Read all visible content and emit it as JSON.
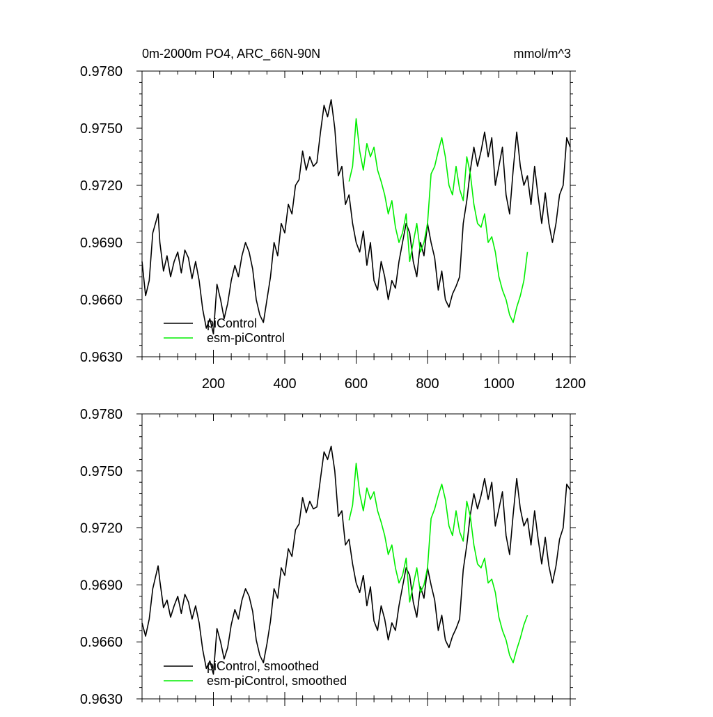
{
  "chart_data": [
    {
      "type": "line",
      "title": "0m-2000m PO4, ARC_66N-90N",
      "units": "mmol/m^3",
      "xlim": [
        0,
        1200
      ],
      "ylim": [
        0.963,
        0.978
      ],
      "yticks": [
        "0.9630",
        "0.9660",
        "0.9690",
        "0.9720",
        "0.9750",
        "0.9780"
      ],
      "xticks": [
        "200",
        "400",
        "600",
        "800",
        "1000",
        "1200"
      ],
      "legend_position": "bottom-left",
      "series": [
        {
          "name": "piControl",
          "color": "#000000",
          "x": [
            0,
            10,
            20,
            30,
            45,
            50,
            60,
            70,
            80,
            90,
            100,
            110,
            120,
            130,
            140,
            150,
            160,
            170,
            180,
            190,
            200,
            210,
            220,
            230,
            240,
            250,
            260,
            270,
            280,
            290,
            300,
            310,
            320,
            330,
            340,
            350,
            360,
            370,
            380,
            390,
            400,
            410,
            420,
            430,
            440,
            450,
            460,
            470,
            480,
            490,
            500,
            510,
            520,
            530,
            540,
            550,
            560,
            570,
            580,
            590,
            600,
            610,
            620,
            630,
            640,
            650,
            660,
            670,
            680,
            690,
            700,
            710,
            720,
            730,
            740,
            750,
            760,
            770,
            780,
            790,
            800,
            810,
            820,
            830,
            840,
            850,
            860,
            870,
            880,
            890,
            900,
            910,
            920,
            930,
            940,
            950,
            960,
            970,
            980,
            990,
            1000,
            1010,
            1020,
            1030,
            1040,
            1050,
            1060,
            1070,
            1080,
            1090,
            1100,
            1110,
            1120,
            1130,
            1140,
            1150,
            1160,
            1170,
            1180,
            1190,
            1200
          ],
          "y": [
            0.968,
            0.9662,
            0.967,
            0.9695,
            0.9705,
            0.969,
            0.9675,
            0.9683,
            0.9672,
            0.968,
            0.9685,
            0.9674,
            0.9686,
            0.9682,
            0.9671,
            0.968,
            0.967,
            0.9655,
            0.9645,
            0.965,
            0.9642,
            0.9668,
            0.966,
            0.965,
            0.9658,
            0.967,
            0.9678,
            0.9672,
            0.9683,
            0.969,
            0.9685,
            0.9676,
            0.966,
            0.9652,
            0.9648,
            0.966,
            0.9672,
            0.969,
            0.9683,
            0.97,
            0.9695,
            0.971,
            0.9705,
            0.972,
            0.9723,
            0.9738,
            0.9728,
            0.9735,
            0.973,
            0.9732,
            0.9748,
            0.9762,
            0.9756,
            0.9765,
            0.975,
            0.9725,
            0.973,
            0.971,
            0.9715,
            0.97,
            0.969,
            0.9685,
            0.9696,
            0.9678,
            0.969,
            0.967,
            0.9665,
            0.968,
            0.9672,
            0.966,
            0.967,
            0.9666,
            0.968,
            0.969,
            0.97,
            0.9695,
            0.968,
            0.9672,
            0.969,
            0.9683,
            0.97,
            0.969,
            0.9682,
            0.9665,
            0.9675,
            0.966,
            0.9656,
            0.9663,
            0.9667,
            0.9672,
            0.97,
            0.9712,
            0.9728,
            0.974,
            0.973,
            0.9738,
            0.9748,
            0.9735,
            0.9745,
            0.972,
            0.973,
            0.974,
            0.9715,
            0.9705,
            0.9728,
            0.9748,
            0.973,
            0.972,
            0.9725,
            0.971,
            0.973,
            0.9714,
            0.97,
            0.9716,
            0.97,
            0.969,
            0.97,
            0.9715,
            0.972,
            0.9745,
            0.974
          ],
          "legend": "piControl"
        },
        {
          "name": "esm-piControl",
          "color": "#00ee00",
          "x": [
            580,
            590,
            600,
            610,
            620,
            630,
            640,
            650,
            660,
            670,
            680,
            690,
            700,
            710,
            720,
            730,
            740,
            750,
            760,
            770,
            780,
            790,
            800,
            810,
            820,
            830,
            840,
            850,
            860,
            870,
            880,
            890,
            900,
            910,
            920,
            930,
            940,
            950,
            960,
            970,
            980,
            990,
            1000,
            1010,
            1020,
            1030,
            1040,
            1050,
            1060,
            1070,
            1080
          ],
          "y": [
            0.9722,
            0.973,
            0.9755,
            0.9738,
            0.9728,
            0.9742,
            0.9735,
            0.974,
            0.9728,
            0.9722,
            0.9715,
            0.9705,
            0.9712,
            0.9698,
            0.969,
            0.9695,
            0.9705,
            0.968,
            0.969,
            0.97,
            0.9685,
            0.969,
            0.97,
            0.9726,
            0.973,
            0.9738,
            0.9745,
            0.9735,
            0.972,
            0.9715,
            0.973,
            0.9718,
            0.9712,
            0.9735,
            0.9726,
            0.971,
            0.97,
            0.9698,
            0.9705,
            0.969,
            0.9693,
            0.9685,
            0.9672,
            0.9665,
            0.966,
            0.9652,
            0.9648,
            0.9656,
            0.9662,
            0.967,
            0.9685
          ],
          "legend": "esm-piControl"
        }
      ]
    },
    {
      "type": "line",
      "title": "",
      "xlim": [
        0,
        1200
      ],
      "ylim": [
        0.963,
        0.978
      ],
      "yticks": [
        "0.9630",
        "0.9660",
        "0.9690",
        "0.9720",
        "0.9750",
        "0.9780"
      ],
      "legend_position": "bottom-left",
      "series": [
        {
          "name": "piControl, smoothed",
          "color": "#000000",
          "x": [
            0,
            10,
            20,
            30,
            45,
            50,
            60,
            70,
            80,
            90,
            100,
            110,
            120,
            130,
            140,
            150,
            160,
            170,
            180,
            190,
            200,
            210,
            220,
            230,
            240,
            250,
            260,
            270,
            280,
            290,
            300,
            310,
            320,
            330,
            340,
            350,
            360,
            370,
            380,
            390,
            400,
            410,
            420,
            430,
            440,
            450,
            460,
            470,
            480,
            490,
            500,
            510,
            520,
            530,
            540,
            550,
            560,
            570,
            580,
            590,
            600,
            610,
            620,
            630,
            640,
            650,
            660,
            670,
            680,
            690,
            700,
            710,
            720,
            730,
            740,
            750,
            760,
            770,
            780,
            790,
            800,
            810,
            820,
            830,
            840,
            850,
            860,
            870,
            880,
            890,
            900,
            910,
            920,
            930,
            940,
            950,
            960,
            970,
            980,
            990,
            1000,
            1010,
            1020,
            1030,
            1040,
            1050,
            1060,
            1070,
            1080,
            1090,
            1100,
            1110,
            1120,
            1130,
            1140,
            1150,
            1160,
            1170,
            1180,
            1190,
            1200
          ],
          "y": [
            0.967,
            0.9663,
            0.9672,
            0.9688,
            0.97,
            0.9692,
            0.9678,
            0.9682,
            0.9673,
            0.9679,
            0.9684,
            0.9675,
            0.9685,
            0.9681,
            0.9672,
            0.9679,
            0.967,
            0.9656,
            0.9646,
            0.965,
            0.9643,
            0.9667,
            0.966,
            0.9651,
            0.9657,
            0.9669,
            0.9677,
            0.9672,
            0.9682,
            0.9688,
            0.9684,
            0.9676,
            0.9661,
            0.9653,
            0.9649,
            0.9659,
            0.9671,
            0.9688,
            0.9683,
            0.9699,
            0.9695,
            0.9709,
            0.9705,
            0.9719,
            0.9722,
            0.9736,
            0.9728,
            0.9734,
            0.973,
            0.9731,
            0.9746,
            0.976,
            0.9756,
            0.9763,
            0.975,
            0.9726,
            0.9729,
            0.9711,
            0.9714,
            0.9701,
            0.9691,
            0.9686,
            0.9695,
            0.9679,
            0.9689,
            0.9671,
            0.9666,
            0.9679,
            0.9672,
            0.9661,
            0.967,
            0.9666,
            0.9679,
            0.9689,
            0.9699,
            0.9695,
            0.9681,
            0.9673,
            0.9689,
            0.9683,
            0.9699,
            0.969,
            0.9682,
            0.9666,
            0.9674,
            0.9661,
            0.9657,
            0.9663,
            0.9667,
            0.9672,
            0.9698,
            0.9711,
            0.9727,
            0.9738,
            0.973,
            0.9737,
            0.9746,
            0.9735,
            0.9744,
            0.9721,
            0.973,
            0.9739,
            0.9716,
            0.9706,
            0.9727,
            0.9746,
            0.973,
            0.9721,
            0.9725,
            0.9711,
            0.9729,
            0.9714,
            0.9701,
            0.9715,
            0.97,
            0.9691,
            0.97,
            0.9714,
            0.972,
            0.9743,
            0.974
          ],
          "legend": "piControl, smoothed"
        },
        {
          "name": "esm-piControl, smoothed",
          "color": "#00ee00",
          "x": [
            580,
            590,
            600,
            610,
            620,
            630,
            640,
            650,
            660,
            670,
            680,
            690,
            700,
            710,
            720,
            730,
            740,
            750,
            760,
            770,
            780,
            790,
            800,
            810,
            820,
            830,
            840,
            850,
            860,
            870,
            880,
            890,
            900,
            910,
            920,
            930,
            940,
            950,
            960,
            970,
            980,
            990,
            1000,
            1010,
            1020,
            1030,
            1040,
            1050,
            1060,
            1070,
            1080
          ],
          "y": [
            0.9724,
            0.9732,
            0.9754,
            0.9738,
            0.9729,
            0.9741,
            0.9735,
            0.9739,
            0.9729,
            0.9723,
            0.9716,
            0.9706,
            0.9711,
            0.9699,
            0.9691,
            0.9695,
            0.9704,
            0.9681,
            0.969,
            0.9699,
            0.9686,
            0.969,
            0.9699,
            0.9725,
            0.973,
            0.9737,
            0.9743,
            0.9735,
            0.9721,
            0.9716,
            0.9729,
            0.9718,
            0.9713,
            0.9734,
            0.9726,
            0.9711,
            0.9701,
            0.9699,
            0.9704,
            0.9691,
            0.9693,
            0.9686,
            0.9673,
            0.9666,
            0.9661,
            0.9653,
            0.9649,
            0.9656,
            0.9662,
            0.9669,
            0.9674
          ],
          "legend": "esm-piControl, smoothed"
        }
      ]
    }
  ]
}
